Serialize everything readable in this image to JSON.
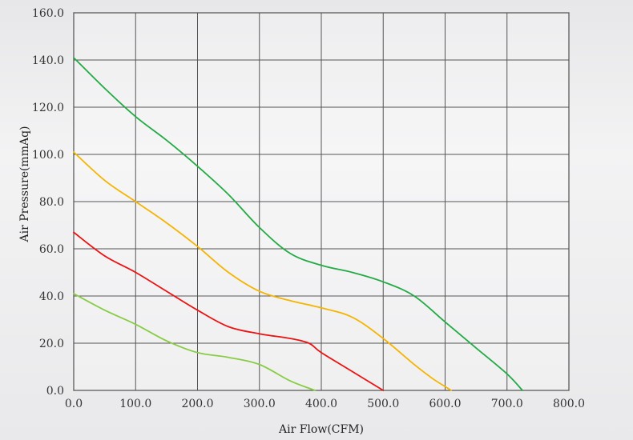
{
  "chart_data": {
    "type": "line",
    "title": "",
    "xlabel": "Air Flow(CFM)",
    "ylabel": "Air Pressure(mmAq)",
    "xlim": [
      0,
      800
    ],
    "ylim": [
      0,
      160
    ],
    "xticks": [
      0,
      100,
      200,
      300,
      400,
      500,
      600,
      700,
      800
    ],
    "yticks": [
      0,
      20,
      40,
      60,
      80,
      100,
      120,
      140,
      160
    ],
    "xtick_labels": [
      "0.0",
      "100.0",
      "200.0",
      "300.0",
      "400.0",
      "500.0",
      "600.0",
      "700.0",
      "800.0"
    ],
    "ytick_labels": [
      "0.0",
      "20.0",
      "40.0",
      "60.0",
      "80.0",
      "100.0",
      "120.0",
      "140.0",
      "160.0"
    ],
    "grid": true,
    "legend": "none",
    "series": [
      {
        "color": "#22aa44",
        "x": [
          0,
          50,
          100,
          150,
          200,
          250,
          300,
          350,
          400,
          450,
          500,
          550,
          600,
          650,
          700,
          725
        ],
        "y": [
          141,
          128,
          116,
          106,
          95,
          83,
          69,
          58,
          53,
          50,
          46,
          40,
          29,
          18,
          7,
          0
        ]
      },
      {
        "color": "#f5b400",
        "x": [
          0,
          50,
          100,
          150,
          200,
          250,
          300,
          350,
          400,
          450,
          500,
          550,
          580,
          610
        ],
        "y": [
          101,
          89,
          80,
          71,
          61,
          50,
          42,
          38,
          35,
          31,
          22,
          11,
          5,
          0
        ]
      },
      {
        "color": "#ee1111",
        "x": [
          0,
          50,
          100,
          150,
          200,
          250,
          300,
          350,
          380,
          400,
          450,
          500
        ],
        "y": [
          67,
          57,
          50,
          42,
          34,
          27,
          24,
          22,
          20,
          16,
          8,
          0
        ]
      },
      {
        "color": "#88cc44",
        "x": [
          0,
          50,
          100,
          150,
          200,
          250,
          300,
          350,
          390
        ],
        "y": [
          41,
          34,
          28,
          21,
          16,
          14,
          11,
          4,
          0
        ]
      }
    ]
  }
}
